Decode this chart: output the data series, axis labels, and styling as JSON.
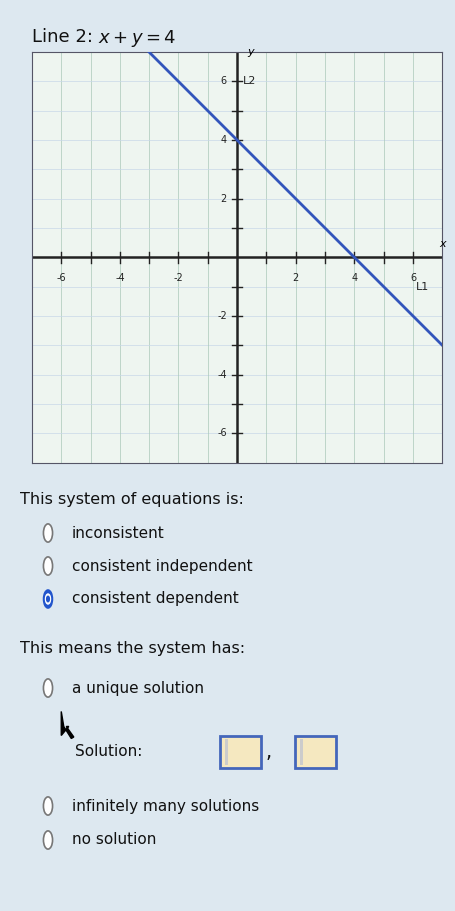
{
  "title_plain": "Line 2: ",
  "title_math": "$x+y=4$",
  "title_fontsize": 13,
  "bg_color": "#dde8f0",
  "graph_bg": "#eef5f0",
  "grid_color": "#aac8b8",
  "grid_color2": "#c8d8e8",
  "axis_range": [
    -7,
    7
  ],
  "tick_values": [
    -6,
    -4,
    -2,
    2,
    4,
    6
  ],
  "line1_label": "L1",
  "line2_label": "L2",
  "line_color": "#3355bb",
  "section_title1": "This system of equations is:",
  "options1": [
    "inconsistent",
    "consistent independent",
    "consistent dependent"
  ],
  "selected1": 2,
  "section_title2": "This means the system has:",
  "options2": [
    "a unique solution",
    "infinitely many solutions",
    "no solution"
  ],
  "solution_label": "Solution:",
  "radio_color_selected": "#2255cc",
  "radio_color_unselected": "#777777",
  "text_color": "#111111",
  "box_fill": "#f5e8c0",
  "box_edge": "#4466bb"
}
